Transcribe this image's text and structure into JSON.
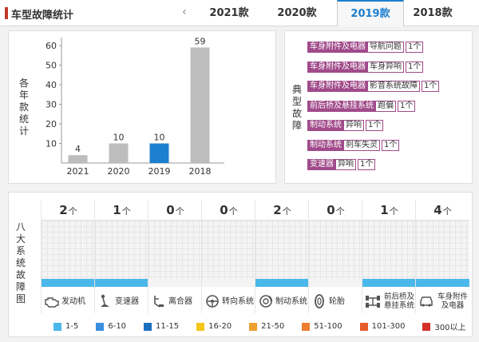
{
  "header": {
    "title": "车型故障统计",
    "prev_arrow": "‹",
    "tabs": [
      "2021款",
      "2020款",
      "2019款",
      "2018款"
    ],
    "active_tab": "2019款",
    "accent_color": "#1c7fd0"
  },
  "left_panel": {
    "vertical_label": "各年款统计"
  },
  "chart_data": {
    "type": "bar",
    "categories": [
      "2021",
      "2020",
      "2019",
      "2018"
    ],
    "values": [
      4,
      10,
      10,
      59
    ],
    "ylim": [
      0,
      60
    ],
    "yticks": [
      10,
      20,
      30,
      40,
      50,
      60
    ],
    "grid": false,
    "colors": [
      "#bdbdbd",
      "#bdbdbd",
      "#1c7fd0",
      "#bdbdbd"
    ],
    "highlight": "2019"
  },
  "right_panel": {
    "vertical_label": "典型故障",
    "tag_color": "#a04a8a",
    "faults": [
      {
        "category": "车身附件及电器",
        "item": "导航问题",
        "count": "1个"
      },
      {
        "category": "车身附件及电器",
        "item": "车身异响",
        "count": "1个"
      },
      {
        "category": "车身附件及电器",
        "item": "影音系统故障",
        "count": "1个"
      },
      {
        "category": "前后桥及悬挂系统",
        "item": "跑偏",
        "count": "1个"
      },
      {
        "category": "制动系统",
        "item": "异响",
        "count": "1个"
      },
      {
        "category": "制动系统",
        "item": "刹车失灵",
        "count": "1个"
      },
      {
        "category": "变速器",
        "item": "异响",
        "count": "1个"
      }
    ]
  },
  "bottom_panel": {
    "vertical_label": "八大系统故障图",
    "unit": "个",
    "systems": [
      {
        "name": "发动机",
        "count": "2",
        "bar_color": "#4ab8ea",
        "icon": "engine-icon"
      },
      {
        "name": "变速器",
        "count": "1",
        "bar_color": "#4ab8ea",
        "icon": "gear-shift-icon"
      },
      {
        "name": "离合器",
        "count": "0",
        "bar_color": "",
        "icon": "clutch-pedal-icon"
      },
      {
        "name": "转向系统",
        "count": "0",
        "bar_color": "",
        "icon": "steering-wheel-icon"
      },
      {
        "name": "制动系统",
        "count": "2",
        "bar_color": "#4ab8ea",
        "icon": "brake-disc-icon"
      },
      {
        "name": "轮胎",
        "count": "0",
        "bar_color": "",
        "icon": "tire-icon"
      },
      {
        "name": "前后桥及悬挂系统",
        "count": "1",
        "bar_color": "#4ab8ea",
        "icon": "suspension-icon"
      },
      {
        "name": "车身附件及电器",
        "count": "4",
        "bar_color": "#4ab8ea",
        "icon": "car-body-icon"
      }
    ],
    "legend": [
      {
        "label": "1-5",
        "color": "#4ab8ea"
      },
      {
        "label": "6-10",
        "color": "#3a8ee0"
      },
      {
        "label": "11-15",
        "color": "#1c6fc0"
      },
      {
        "label": "16-20",
        "color": "#f5c518"
      },
      {
        "label": "21-50",
        "color": "#f0a030"
      },
      {
        "label": "51-100",
        "color": "#ef7d2f"
      },
      {
        "label": "101-300",
        "color": "#e65c2a"
      },
      {
        "label": "300以上",
        "color": "#d6302a"
      }
    ]
  }
}
